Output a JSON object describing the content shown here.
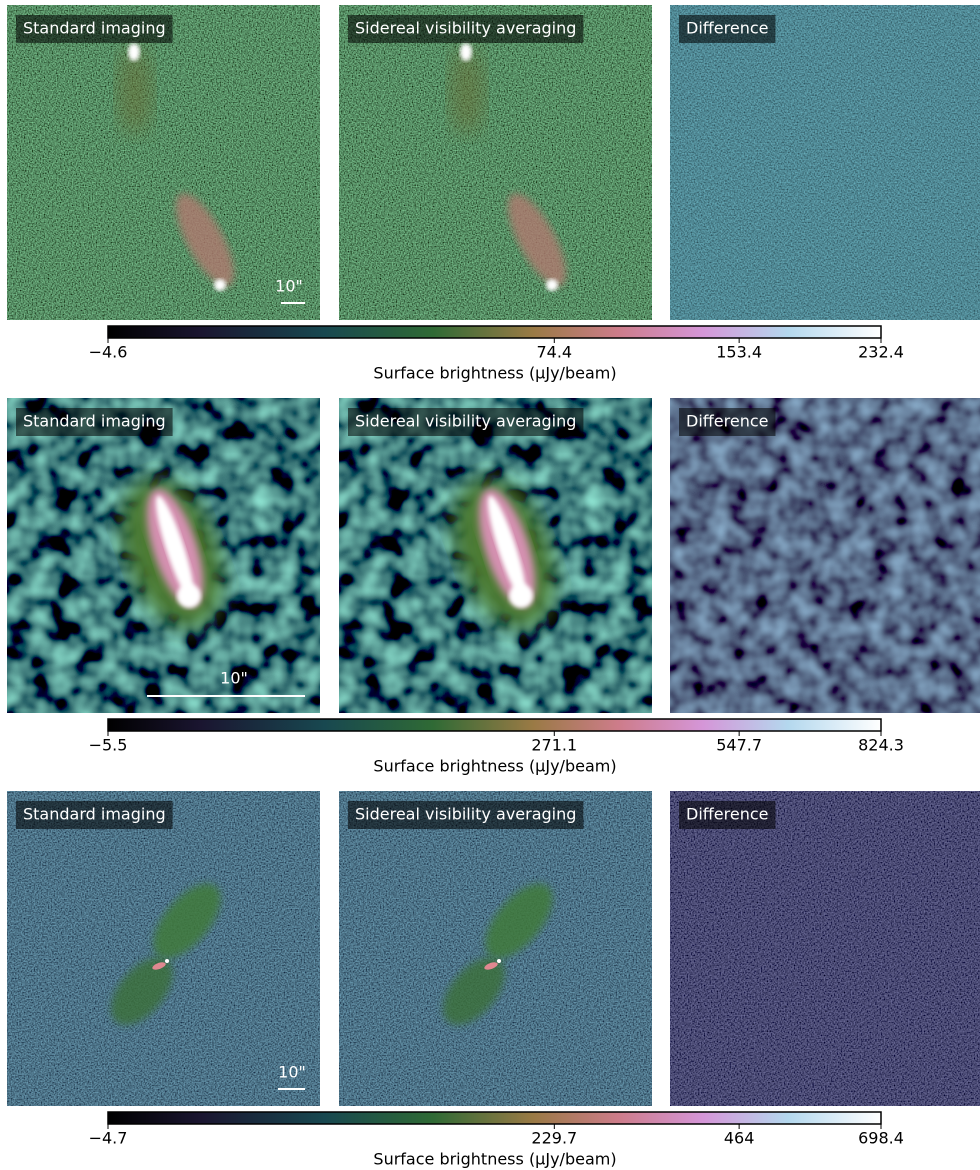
{
  "chart_data": [
    {
      "type": "image-grid",
      "panels": [
        "Standard imaging",
        "Sidereal visibility averaging",
        "Difference"
      ],
      "scalebar": "10\"",
      "xlabel": "Surface brightness (μJy/beam)",
      "xscale": "sqrt",
      "xlim": [
        -4.6,
        232.4
      ],
      "xticks": [
        {
          "value": -4.6,
          "label": "−4.6"
        },
        74.4,
        153.4,
        232.4
      ]
    },
    {
      "type": "image-grid",
      "panels": [
        "Standard imaging",
        "Sidereal visibility averaging",
        "Difference"
      ],
      "scalebar": "10\"",
      "xlabel": "Surface brightness (μJy/beam)",
      "xscale": "sqrt",
      "xlim": [
        -5.5,
        824.3
      ],
      "xticks": [
        {
          "value": -5.5,
          "label": "−5.5"
        },
        271.1,
        547.7,
        824.3
      ]
    },
    {
      "type": "image-grid",
      "panels": [
        "Standard imaging",
        "Sidereal visibility averaging",
        "Difference"
      ],
      "scalebar": "10\"",
      "xlabel": "Surface brightness (μJy/beam)",
      "xscale": "sqrt",
      "xlim": [
        -4.7,
        698.4
      ],
      "xticks": [
        {
          "value": -4.7,
          "label": "−4.7"
        },
        229.7,
        464.0,
        698.4
      ]
    }
  ]
}
